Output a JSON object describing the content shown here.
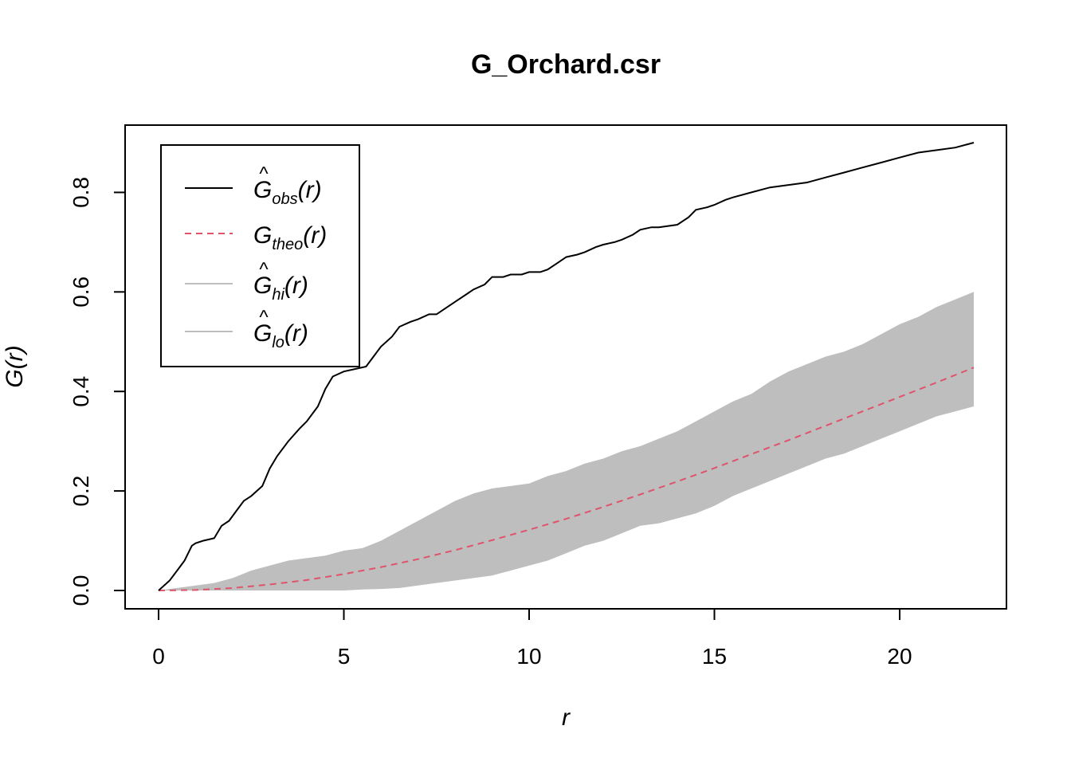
{
  "chart_data": {
    "type": "line",
    "title": "G_Orchard.csr",
    "xlabel": "r",
    "ylabel": "G(r)",
    "xlim": [
      0,
      22
    ],
    "ylim": [
      0,
      0.9
    ],
    "x_ticks": [
      0,
      5,
      10,
      15,
      20
    ],
    "y_ticks": [
      0.0,
      0.2,
      0.4,
      0.6,
      0.8
    ],
    "x_tick_labels": [
      "0",
      "5",
      "10",
      "15",
      "20"
    ],
    "y_tick_labels": [
      "0.0",
      "0.2",
      "0.4",
      "0.6",
      "0.8"
    ],
    "grid": false,
    "legend_position": "top-left",
    "legend": [
      {
        "key": "obs",
        "base": "G",
        "hat": true,
        "sub": "obs",
        "arg": "(r)",
        "color": "#000000",
        "style": "solid"
      },
      {
        "key": "theo",
        "base": "G",
        "hat": false,
        "sub": "theo",
        "arg": "(r)",
        "color": "#DF536B",
        "style": "dashed"
      },
      {
        "key": "hi",
        "base": "G",
        "hat": true,
        "sub": "hi",
        "arg": "(r)",
        "color": "#BEBEBE",
        "style": "solid"
      },
      {
        "key": "lo",
        "base": "G",
        "hat": true,
        "sub": "lo",
        "arg": "(r)",
        "color": "#BEBEBE",
        "style": "solid"
      }
    ],
    "series": [
      {
        "key": "obs",
        "color": "#000000",
        "x": [
          0,
          0.3,
          0.5,
          0.7,
          0.9,
          1.0,
          1.2,
          1.5,
          1.7,
          1.9,
          2.1,
          2.3,
          2.5,
          2.8,
          3.0,
          3.2,
          3.5,
          3.8,
          4.0,
          4.3,
          4.5,
          4.7,
          5.0,
          5.3,
          5.6,
          5.8,
          6.0,
          6.3,
          6.5,
          6.8,
          7.0,
          7.3,
          7.5,
          7.8,
          8.0,
          8.3,
          8.5,
          8.8,
          9.0,
          9.3,
          9.5,
          9.8,
          10.0,
          10.3,
          10.5,
          10.8,
          11.0,
          11.3,
          11.5,
          11.8,
          12.0,
          12.3,
          12.5,
          12.8,
          13.0,
          13.3,
          13.5,
          14.0,
          14.3,
          14.5,
          14.8,
          15.0,
          15.3,
          15.5,
          16.0,
          16.5,
          17.0,
          17.5,
          18.0,
          18.5,
          19.0,
          19.5,
          20.0,
          20.5,
          21.0,
          21.5,
          22.0
        ],
        "values": [
          0.0,
          0.02,
          0.04,
          0.06,
          0.09,
          0.095,
          0.1,
          0.105,
          0.13,
          0.14,
          0.16,
          0.18,
          0.19,
          0.21,
          0.245,
          0.27,
          0.3,
          0.325,
          0.34,
          0.37,
          0.405,
          0.43,
          0.44,
          0.445,
          0.45,
          0.47,
          0.49,
          0.51,
          0.53,
          0.54,
          0.545,
          0.555,
          0.555,
          0.57,
          0.58,
          0.595,
          0.605,
          0.615,
          0.63,
          0.63,
          0.635,
          0.635,
          0.64,
          0.64,
          0.645,
          0.66,
          0.67,
          0.675,
          0.68,
          0.69,
          0.695,
          0.7,
          0.705,
          0.715,
          0.725,
          0.73,
          0.73,
          0.735,
          0.75,
          0.765,
          0.77,
          0.775,
          0.785,
          0.79,
          0.8,
          0.81,
          0.815,
          0.82,
          0.83,
          0.84,
          0.85,
          0.86,
          0.87,
          0.88,
          0.885,
          0.89,
          0.9
        ]
      },
      {
        "key": "theo",
        "color": "#DF536B",
        "x": [
          0,
          1,
          2,
          3,
          4,
          5,
          6,
          7,
          8,
          9,
          10,
          11,
          12,
          13,
          14,
          15,
          16,
          17,
          18,
          19,
          20,
          21,
          22
        ],
        "values": [
          0.0,
          0.001,
          0.005,
          0.012,
          0.021,
          0.033,
          0.047,
          0.063,
          0.081,
          0.101,
          0.122,
          0.144,
          0.168,
          0.193,
          0.219,
          0.246,
          0.274,
          0.302,
          0.331,
          0.36,
          0.389,
          0.418,
          0.448
        ]
      },
      {
        "key": "hi",
        "color": "#BEBEBE",
        "x": [
          0,
          0.5,
          1.0,
          1.5,
          2.0,
          2.5,
          3.0,
          3.5,
          4.0,
          4.5,
          5.0,
          5.5,
          6.0,
          6.5,
          7.0,
          7.5,
          8.0,
          8.5,
          9.0,
          9.5,
          10.0,
          10.5,
          11.0,
          11.5,
          12.0,
          12.5,
          13.0,
          13.5,
          14.0,
          14.5,
          15.0,
          15.5,
          16.0,
          16.5,
          17.0,
          17.5,
          18.0,
          18.5,
          19.0,
          19.5,
          20.0,
          20.5,
          21.0,
          21.5,
          22.0
        ],
        "values": [
          0.0,
          0.005,
          0.01,
          0.015,
          0.025,
          0.04,
          0.05,
          0.06,
          0.065,
          0.07,
          0.08,
          0.085,
          0.1,
          0.12,
          0.14,
          0.16,
          0.18,
          0.195,
          0.205,
          0.21,
          0.215,
          0.23,
          0.24,
          0.255,
          0.265,
          0.28,
          0.29,
          0.305,
          0.32,
          0.34,
          0.36,
          0.38,
          0.395,
          0.42,
          0.44,
          0.455,
          0.47,
          0.48,
          0.495,
          0.515,
          0.535,
          0.55,
          0.57,
          0.585,
          0.6
        ]
      },
      {
        "key": "lo",
        "color": "#BEBEBE",
        "x": [
          0,
          0.5,
          1.0,
          1.5,
          2.0,
          2.5,
          3.0,
          3.5,
          4.0,
          4.5,
          5.0,
          5.5,
          6.0,
          6.5,
          7.0,
          7.5,
          8.0,
          8.5,
          9.0,
          9.5,
          10.0,
          10.5,
          11.0,
          11.5,
          12.0,
          12.5,
          13.0,
          13.5,
          14.0,
          14.5,
          15.0,
          15.5,
          16.0,
          16.5,
          17.0,
          17.5,
          18.0,
          18.5,
          19.0,
          19.5,
          20.0,
          20.5,
          21.0,
          21.5,
          22.0
        ],
        "values": [
          0.0,
          0.0,
          0.0,
          0.0,
          0.0,
          0.0,
          0.0,
          0.0,
          0.0,
          0.0,
          0.0,
          0.002,
          0.003,
          0.005,
          0.01,
          0.015,
          0.02,
          0.025,
          0.03,
          0.04,
          0.05,
          0.06,
          0.075,
          0.09,
          0.1,
          0.115,
          0.13,
          0.135,
          0.145,
          0.155,
          0.17,
          0.19,
          0.205,
          0.22,
          0.235,
          0.25,
          0.265,
          0.275,
          0.29,
          0.305,
          0.32,
          0.335,
          0.35,
          0.36,
          0.37
        ]
      }
    ]
  }
}
